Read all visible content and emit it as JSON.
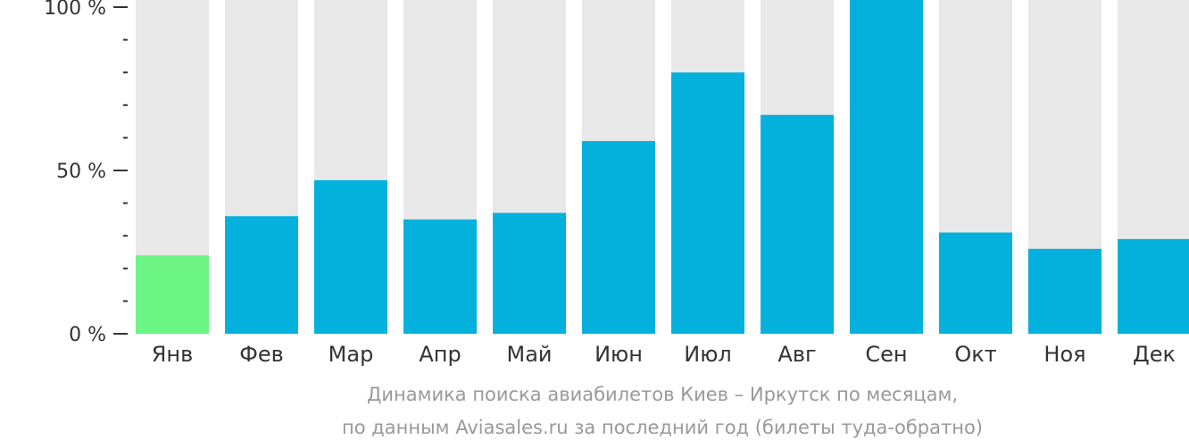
{
  "chart_data": {
    "type": "bar",
    "title": "",
    "xlabel": "",
    "ylabel": "",
    "categories": [
      "Янв",
      "Фев",
      "Мар",
      "Апр",
      "Май",
      "Июн",
      "Июл",
      "Авг",
      "Сен",
      "Окт",
      "Ноя",
      "Дек"
    ],
    "values": [
      24,
      36,
      47,
      35,
      37,
      59,
      80,
      67,
      100,
      31,
      26,
      29
    ],
    "ylim": [
      0,
      100
    ],
    "yticks": [
      0,
      50,
      100
    ],
    "ytick_labels": [
      "0 %",
      "50 %",
      "100 %"
    ],
    "minor_tick_step": 10,
    "highlight_index": 0,
    "colors": {
      "bar": "#03b1dc",
      "highlight": "#6bf585",
      "background_bar": "#e8e8e8",
      "axis": "#333333"
    }
  },
  "caption": {
    "line1": "Динамика поиска авиабилетов Киев – Иркутск по месяцам,",
    "line2": "по данным Aviasales.ru за последний год (билеты туда-обратно)"
  }
}
